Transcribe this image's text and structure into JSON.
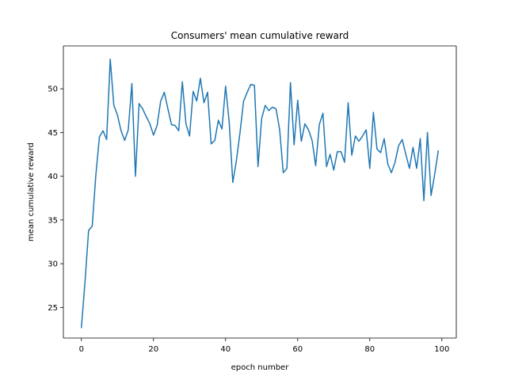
{
  "chart_data": {
    "type": "line",
    "title": "Consumers' mean cumulative reward",
    "xlabel": "epoch number",
    "ylabel": "mean cumulative reward",
    "xlim": [
      -5,
      104
    ],
    "ylim": [
      21.5,
      54.9
    ],
    "xticks": [
      0,
      20,
      40,
      60,
      80,
      100
    ],
    "yticks": [
      25,
      30,
      35,
      40,
      45,
      50
    ],
    "grid": false,
    "legend": "none",
    "line_color": "#1f77b4",
    "series": [
      {
        "x": [
          0,
          1,
          2,
          3,
          4,
          5,
          6,
          7,
          8,
          9,
          10,
          11,
          12,
          13,
          14,
          15,
          16,
          17,
          18,
          19,
          20,
          21,
          22,
          23,
          24,
          25,
          26,
          27,
          28,
          29,
          30,
          31,
          32,
          33,
          34,
          35,
          36,
          37,
          38,
          39,
          40,
          41,
          42,
          43,
          44,
          45,
          46,
          47,
          48,
          49,
          50,
          51,
          52,
          53,
          54,
          55,
          56,
          57,
          58,
          59,
          60,
          61,
          62,
          63,
          64,
          65,
          66,
          67,
          68,
          69,
          70,
          71,
          72,
          73,
          74,
          75,
          76,
          77,
          78,
          79,
          80,
          81,
          82,
          83,
          84,
          85,
          86,
          87,
          88,
          89,
          90,
          91,
          92,
          93,
          94,
          95,
          96,
          97,
          98,
          99
        ],
        "values": [
          22.7,
          27.9,
          33.8,
          34.3,
          40.1,
          44.5,
          45.2,
          44.2,
          53.4,
          48.1,
          47.0,
          45.2,
          44.1,
          45.3,
          50.6,
          40.0,
          48.3,
          47.7,
          46.8,
          46.0,
          44.7,
          45.8,
          48.6,
          49.6,
          47.7,
          45.9,
          45.8,
          45.2,
          50.8,
          46.0,
          44.6,
          49.7,
          48.6,
          51.2,
          48.4,
          49.6,
          43.7,
          44.1,
          46.4,
          45.4,
          50.3,
          46.2,
          39.3,
          41.8,
          45.0,
          48.6,
          49.6,
          50.5,
          50.4,
          41.1,
          46.6,
          48.1,
          47.5,
          47.9,
          47.7,
          45.3,
          40.4,
          40.9,
          50.7,
          43.6,
          48.7,
          44.0,
          46.0,
          45.3,
          44.1,
          41.2,
          45.9,
          47.2,
          41.1,
          42.5,
          40.7,
          42.8,
          42.8,
          41.6,
          48.4,
          42.4,
          44.6,
          44.0,
          44.6,
          45.3,
          40.9,
          47.3,
          43.1,
          42.7,
          44.3,
          41.4,
          40.4,
          41.6,
          43.5,
          44.2,
          42.5,
          40.9,
          43.3,
          40.9,
          44.3,
          37.2,
          45.0,
          37.8,
          40.2,
          42.9
        ]
      }
    ]
  }
}
